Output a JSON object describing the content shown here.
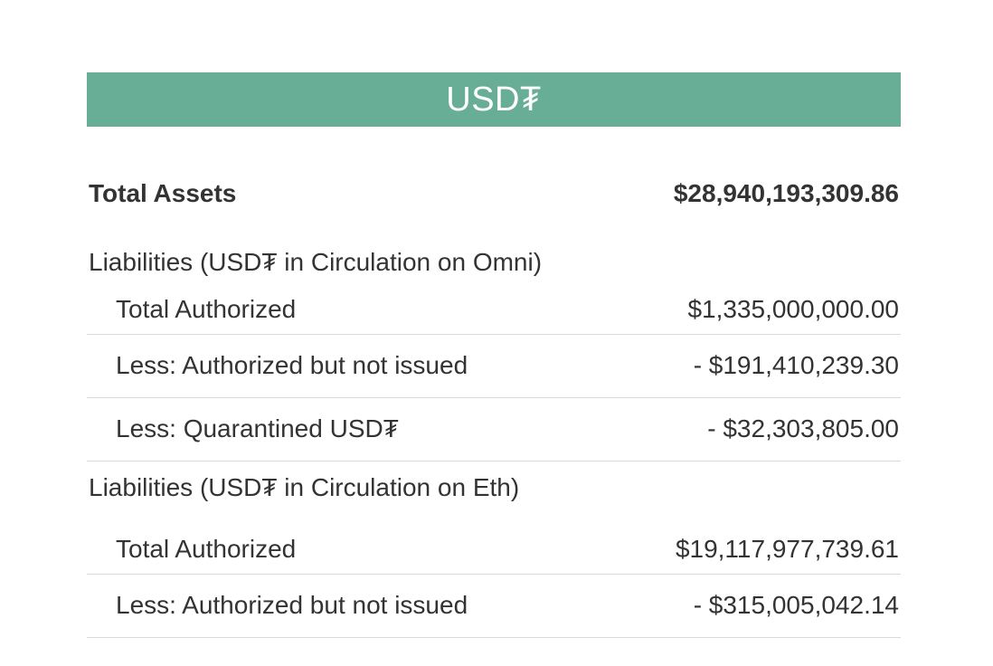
{
  "banner": {
    "title": "USD₮"
  },
  "total_assets": {
    "label": "Total Assets",
    "value": "$28,940,193,309.86"
  },
  "omni": {
    "heading": "Liabilities (USD₮ in Circulation on Omni)",
    "rows": [
      {
        "label": "Total Authorized",
        "value": "$1,335,000,000.00"
      },
      {
        "label": "Less: Authorized but not issued",
        "value": "- $191,410,239.30"
      },
      {
        "label": "Less: Quarantined USD₮",
        "value": "- $32,303,805.00"
      }
    ]
  },
  "eth": {
    "heading": "Liabilities (USD₮ in Circulation on Eth)",
    "rows": [
      {
        "label": "Total Authorized",
        "value": "$19,117,977,739.61"
      },
      {
        "label": "Less: Authorized but not issued",
        "value": "- $315,005,042.14"
      }
    ]
  },
  "colors": {
    "banner_bg": "#68ae96",
    "banner_text": "#ffffff",
    "text": "#333333",
    "divider": "#d9d9d9"
  }
}
